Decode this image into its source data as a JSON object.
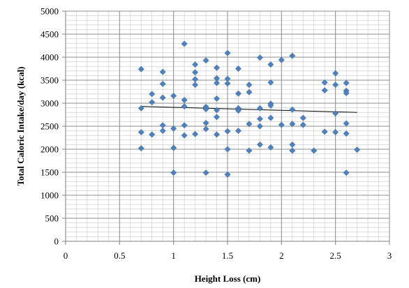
{
  "chart_data": {
    "type": "scatter",
    "title": "",
    "xlabel": "Height Loss (cm)",
    "ylabel": "Total Caloric Intake/day (kcal)",
    "xlim": [
      0,
      3
    ],
    "ylim": [
      0,
      5000
    ],
    "x_ticks": [
      "0",
      "0.5",
      "1",
      "1.5",
      "2",
      "2.5",
      "3"
    ],
    "y_ticks": [
      "0",
      "500",
      "1000",
      "1500",
      "2000",
      "2500",
      "3000",
      "3500",
      "4000",
      "4500",
      "5000"
    ],
    "x_tick_values": [
      0,
      0.5,
      1,
      1.5,
      2,
      2.5,
      3
    ],
    "y_tick_values": [
      0,
      500,
      1000,
      1500,
      2000,
      2500,
      3000,
      3500,
      4000,
      4500,
      5000
    ],
    "grid": true,
    "marker_color": "#4F81BD",
    "trendline_color": "#000000",
    "legend": "none",
    "trendline": {
      "x": [
        0.7,
        2.7
      ],
      "y": [
        2930,
        2800
      ]
    },
    "points": [
      [
        0.7,
        3740
      ],
      [
        0.7,
        2890
      ],
      [
        0.7,
        2370
      ],
      [
        0.7,
        2020
      ],
      [
        0.8,
        3200
      ],
      [
        0.8,
        3020
      ],
      [
        0.8,
        2320
      ],
      [
        0.9,
        3680
      ],
      [
        0.9,
        3420
      ],
      [
        0.9,
        3120
      ],
      [
        0.9,
        2520
      ],
      [
        0.9,
        2400
      ],
      [
        1.0,
        3160
      ],
      [
        1.0,
        2450
      ],
      [
        1.0,
        2030
      ],
      [
        1.0,
        1490
      ],
      [
        1.1,
        4290
      ],
      [
        1.1,
        3070
      ],
      [
        1.1,
        2930
      ],
      [
        1.1,
        2520
      ],
      [
        1.1,
        2300
      ],
      [
        1.2,
        3840
      ],
      [
        1.2,
        3670
      ],
      [
        1.2,
        3520
      ],
      [
        1.2,
        3400
      ],
      [
        1.2,
        2330
      ],
      [
        1.3,
        3930
      ],
      [
        1.3,
        2920
      ],
      [
        1.3,
        2870
      ],
      [
        1.3,
        2570
      ],
      [
        1.3,
        2440
      ],
      [
        1.3,
        1490
      ],
      [
        1.4,
        3770
      ],
      [
        1.4,
        3540
      ],
      [
        1.4,
        3440
      ],
      [
        1.4,
        3100
      ],
      [
        1.4,
        2850
      ],
      [
        1.4,
        2700
      ],
      [
        1.4,
        2320
      ],
      [
        1.5,
        4090
      ],
      [
        1.5,
        3530
      ],
      [
        1.5,
        3430
      ],
      [
        1.5,
        2390
      ],
      [
        1.5,
        2000
      ],
      [
        1.5,
        1450
      ],
      [
        1.6,
        3750
      ],
      [
        1.6,
        3210
      ],
      [
        1.6,
        2890
      ],
      [
        1.6,
        2840
      ],
      [
        1.6,
        2400
      ],
      [
        1.7,
        3400
      ],
      [
        1.7,
        3240
      ],
      [
        1.7,
        2550
      ],
      [
        1.7,
        1970
      ],
      [
        1.8,
        3990
      ],
      [
        1.8,
        2890
      ],
      [
        1.8,
        2660
      ],
      [
        1.8,
        2500
      ],
      [
        1.8,
        2100
      ],
      [
        1.9,
        3840
      ],
      [
        1.9,
        3450
      ],
      [
        1.9,
        2990
      ],
      [
        1.9,
        2950
      ],
      [
        1.9,
        2680
      ],
      [
        1.9,
        2040
      ],
      [
        2.0,
        3940
      ],
      [
        2.0,
        2530
      ],
      [
        2.1,
        4030
      ],
      [
        2.1,
        2860
      ],
      [
        2.1,
        2550
      ],
      [
        2.1,
        2100
      ],
      [
        2.1,
        1970
      ],
      [
        2.2,
        2680
      ],
      [
        2.2,
        2530
      ],
      [
        2.3,
        1970
      ],
      [
        2.4,
        3450
      ],
      [
        2.4,
        3280
      ],
      [
        2.4,
        2380
      ],
      [
        2.5,
        3650
      ],
      [
        2.5,
        3400
      ],
      [
        2.5,
        2780
      ],
      [
        2.5,
        2370
      ],
      [
        2.6,
        3440
      ],
      [
        2.6,
        3270
      ],
      [
        2.6,
        3220
      ],
      [
        2.6,
        2560
      ],
      [
        2.6,
        2340
      ],
      [
        2.6,
        1490
      ],
      [
        2.7,
        1990
      ]
    ]
  }
}
